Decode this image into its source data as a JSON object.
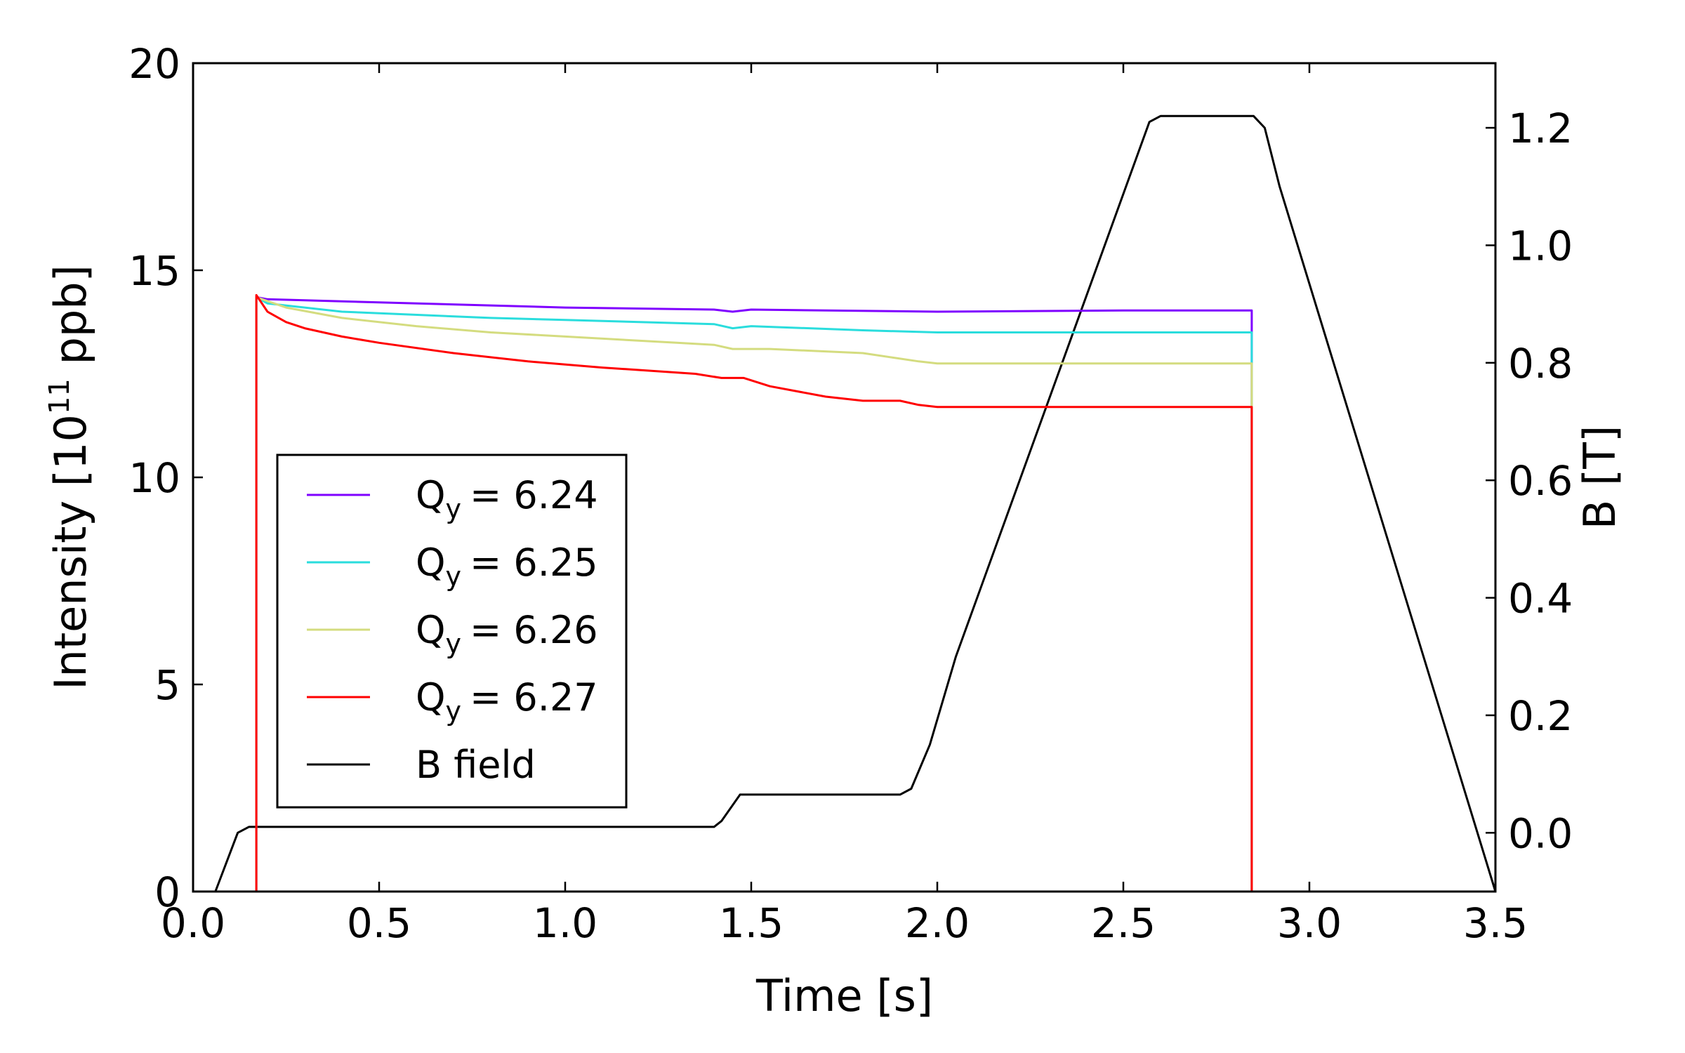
{
  "chart_data": {
    "type": "line",
    "xlabel": "Time [s]",
    "ylabel_left_pre": "Intensity [10",
    "ylabel_left_exp": "11",
    "ylabel_left_post": " ppb]",
    "ylabel_right": "B [T]",
    "xlim": [
      0.0,
      3.5
    ],
    "ylim_left": [
      0,
      20
    ],
    "ylim_right": [
      -0.1,
      1.31
    ],
    "x_ticks": [
      "0.0",
      "0.5",
      "1.0",
      "1.5",
      "2.0",
      "2.5",
      "3.0",
      "3.5"
    ],
    "y_left_ticks": [
      "0",
      "5",
      "10",
      "15",
      "20"
    ],
    "y_right_ticks": [
      "0.0",
      "0.2",
      "0.4",
      "0.6",
      "0.8",
      "1.0",
      "1.2"
    ],
    "legend_position": "lower-left",
    "series": [
      {
        "name": "Q_y = 6.24",
        "q_label": "Q",
        "q_sub": "y",
        "q_value": "= 6.24",
        "color": "#7f00ff",
        "axis": "left",
        "x": [
          0.17,
          0.17,
          0.2,
          0.4,
          0.8,
          1.0,
          1.4,
          1.45,
          1.5,
          2.0,
          2.5,
          2.845,
          2.845
        ],
        "y": [
          0,
          14.35,
          14.3,
          14.25,
          14.15,
          14.1,
          14.05,
          14.0,
          14.05,
          14.0,
          14.03,
          14.03,
          0
        ]
      },
      {
        "name": "Q_y = 6.25",
        "q_label": "Q",
        "q_sub": "y",
        "q_value": "= 6.25",
        "color": "#2adddd",
        "axis": "left",
        "x": [
          0.17,
          0.17,
          0.2,
          0.4,
          0.8,
          1.0,
          1.4,
          1.45,
          1.5,
          1.8,
          2.0,
          2.5,
          2.845,
          2.845
        ],
        "y": [
          0,
          14.35,
          14.2,
          14.0,
          13.85,
          13.8,
          13.7,
          13.6,
          13.65,
          13.55,
          13.5,
          13.5,
          13.5,
          0
        ]
      },
      {
        "name": "Q_y = 6.26",
        "q_label": "Q",
        "q_sub": "y",
        "q_value": "= 6.26",
        "color": "#d4dc7f",
        "axis": "left",
        "x": [
          0.17,
          0.17,
          0.25,
          0.4,
          0.6,
          0.8,
          1.0,
          1.3,
          1.4,
          1.45,
          1.55,
          1.8,
          1.95,
          2.0,
          2.5,
          2.845,
          2.845
        ],
        "y": [
          0,
          14.35,
          14.1,
          13.85,
          13.65,
          13.5,
          13.4,
          13.25,
          13.2,
          13.1,
          13.1,
          13.0,
          12.8,
          12.75,
          12.75,
          12.75,
          0
        ]
      },
      {
        "name": "Q_y = 6.27",
        "q_label": "Q",
        "q_sub": "y",
        "q_value": "= 6.27",
        "color": "#ff0000",
        "axis": "left",
        "x": [
          0.17,
          0.17,
          0.2,
          0.25,
          0.3,
          0.4,
          0.5,
          0.7,
          0.9,
          1.1,
          1.35,
          1.42,
          1.48,
          1.55,
          1.7,
          1.8,
          1.9,
          1.95,
          2.0,
          2.5,
          2.845,
          2.845
        ],
        "y": [
          0,
          14.4,
          14.0,
          13.75,
          13.6,
          13.4,
          13.25,
          13.0,
          12.8,
          12.65,
          12.5,
          12.4,
          12.4,
          12.2,
          11.95,
          11.85,
          11.85,
          11.75,
          11.7,
          11.7,
          11.7,
          0
        ]
      },
      {
        "name": "B field",
        "color": "#000000",
        "axis": "right",
        "x": [
          0.06,
          0.12,
          0.15,
          1.4,
          1.42,
          1.47,
          1.52,
          1.9,
          1.93,
          1.98,
          2.05,
          2.57,
          2.6,
          2.85,
          2.88,
          2.92,
          3.5
        ],
        "y": [
          -0.1,
          0.0,
          0.01,
          0.01,
          0.02,
          0.065,
          0.065,
          0.065,
          0.075,
          0.15,
          0.3,
          1.21,
          1.22,
          1.22,
          1.2,
          1.1,
          -0.1
        ]
      }
    ]
  }
}
